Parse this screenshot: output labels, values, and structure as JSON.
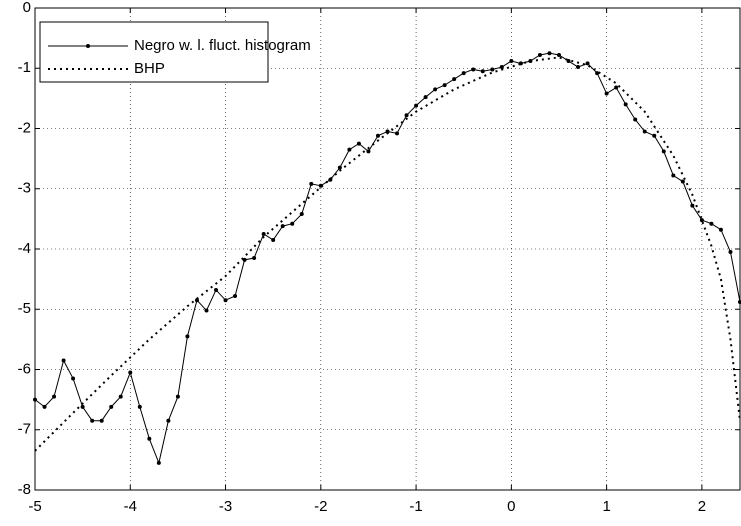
{
  "chart_data": {
    "type": "line",
    "xlim": [
      -5,
      2.4
    ],
    "xticks": [
      -5,
      -4,
      -3,
      -2,
      -1,
      0,
      1,
      2
    ],
    "ylim": [
      -8,
      0
    ],
    "yticks": [
      -8,
      -7,
      -6,
      -5,
      -4,
      -3,
      -2,
      -1,
      0
    ],
    "grid": true,
    "legend": "upper left",
    "series": [
      {
        "name": "Negro w. l. fluct. histogram",
        "color": "#000000",
        "style": "solid-dots",
        "x": [
          -5.0,
          -4.9,
          -4.8,
          -4.7,
          -4.6,
          -4.5,
          -4.4,
          -4.3,
          -4.2,
          -4.1,
          -4.0,
          -3.9,
          -3.8,
          -3.7,
          -3.6,
          -3.5,
          -3.4,
          -3.3,
          -3.2,
          -3.1,
          -3.0,
          -2.9,
          -2.8,
          -2.7,
          -2.6,
          -2.5,
          -2.4,
          -2.3,
          -2.2,
          -2.1,
          -2.0,
          -1.9,
          -1.8,
          -1.7,
          -1.6,
          -1.5,
          -1.4,
          -1.3,
          -1.2,
          -1.1,
          -1.0,
          -0.9,
          -0.8,
          -0.7,
          -0.6,
          -0.5,
          -0.4,
          -0.3,
          -0.2,
          -0.1,
          0.0,
          0.1,
          0.2,
          0.3,
          0.4,
          0.5,
          0.6,
          0.7,
          0.8,
          0.9,
          1.0,
          1.1,
          1.2,
          1.3,
          1.4,
          1.5,
          1.6,
          1.7,
          1.8,
          1.9,
          2.0,
          2.1,
          2.2,
          2.3,
          2.4
        ],
        "values": [
          -6.5,
          -6.62,
          -6.45,
          -5.85,
          -6.15,
          -6.62,
          -6.85,
          -6.85,
          -6.62,
          -6.45,
          -6.05,
          -6.62,
          -7.15,
          -7.55,
          -6.85,
          -6.45,
          -5.45,
          -4.85,
          -5.02,
          -4.68,
          -4.85,
          -4.78,
          -4.18,
          -4.15,
          -3.75,
          -3.85,
          -3.62,
          -3.58,
          -3.42,
          -2.92,
          -2.95,
          -2.85,
          -2.65,
          -2.35,
          -2.25,
          -2.38,
          -2.12,
          -2.05,
          -2.08,
          -1.78,
          -1.62,
          -1.48,
          -1.35,
          -1.28,
          -1.18,
          -1.08,
          -1.02,
          -1.05,
          -1.02,
          -0.98,
          -0.88,
          -0.92,
          -0.88,
          -0.78,
          -0.75,
          -0.78,
          -0.88,
          -0.98,
          -0.92,
          -1.08,
          -1.42,
          -1.32,
          -1.6,
          -1.85,
          -2.05,
          -2.12,
          -2.38,
          -2.78,
          -2.88,
          -3.28,
          -3.52,
          -3.58,
          -3.68,
          -4.05,
          -4.88
        ]
      },
      {
        "name": "BHP",
        "color": "#000000",
        "style": "dotted",
        "x": [
          -5.0,
          -4.6,
          -4.2,
          -3.8,
          -3.4,
          -3.0,
          -2.6,
          -2.2,
          -1.8,
          -1.4,
          -1.0,
          -0.6,
          -0.2,
          0.2,
          0.5,
          0.8,
          1.1,
          1.4,
          1.7,
          1.9,
          2.1,
          2.2,
          2.3,
          2.4
        ],
        "values": [
          -7.35,
          -6.72,
          -6.1,
          -5.5,
          -4.95,
          -4.45,
          -3.8,
          -3.25,
          -2.7,
          -2.2,
          -1.72,
          -1.35,
          -1.07,
          -0.88,
          -0.82,
          -0.95,
          -1.25,
          -1.72,
          -2.45,
          -3.1,
          -3.95,
          -4.5,
          -5.5,
          -6.85
        ]
      }
    ]
  }
}
